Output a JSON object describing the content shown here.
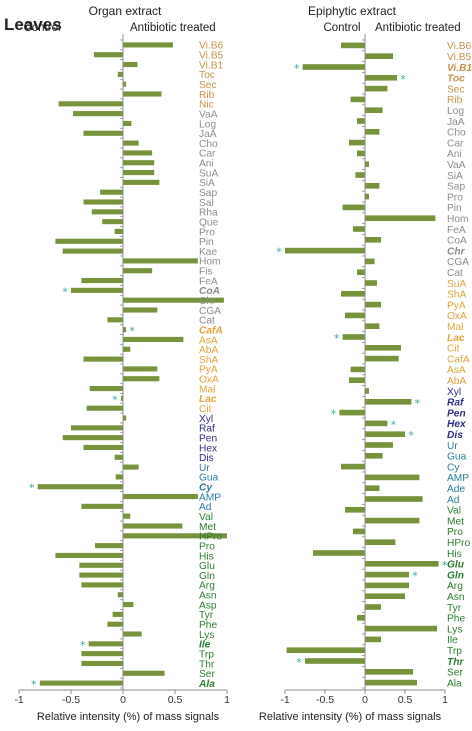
{
  "figure_label": "Leaves",
  "colors": {
    "bar": "#77933C",
    "axis": "#8c8c8c",
    "star": "#3aa89a",
    "vitamins": "#C8924A",
    "secondary": "#8C8C8C",
    "organic_acids": "#E3A23A",
    "sugars": "#2E2E8A",
    "nucleotides": "#2C7DA0",
    "amino_acids": "#2E7D32"
  },
  "chart_data": [
    {
      "type": "bar",
      "orientation": "horizontal",
      "title": "Organ extract",
      "left_label": "Control",
      "right_label": "Antibiotic treated",
      "xlabel": "Relative intensity (%) of mass signals",
      "xlim": [
        -1,
        1
      ],
      "xticks": [
        -1,
        -0.5,
        0,
        0.5,
        1
      ],
      "xtick_labels": [
        "-1",
        "-0.5",
        "0",
        "0.5",
        "1"
      ],
      "grid": false,
      "categories": [
        "Vi.B6",
        "Vi.B5",
        "Vi.B1",
        "Toc",
        "Sec",
        "Rib",
        "Nic",
        "VaA",
        "Log",
        "JaA",
        "Cho",
        "Car",
        "Ani",
        "SuA",
        "SiA",
        "Sap",
        "Sal",
        "Rha",
        "Que",
        "Pro",
        "Pin",
        "Kae",
        "Hom",
        "Fis",
        "FeA",
        "CoA",
        "Chr",
        "CGA",
        "Cat",
        "CafA",
        "AsA",
        "AbA",
        "ShA",
        "PyA",
        "OxA",
        "Mal",
        "Lac",
        "Cit",
        "Xyl",
        "Raf",
        "Pen",
        "Hex",
        "Dis",
        "Ur",
        "Gua",
        "Cy",
        "AMP",
        "Ad",
        "Val",
        "Met",
        "HPro",
        "Pro",
        "His",
        "Glu",
        "Gln",
        "Arg",
        "Asn",
        "Asp",
        "Tyr",
        "Phe",
        "Lys",
        "Ile",
        "Trp",
        "Thr",
        "Ser",
        "Ala"
      ],
      "groups": [
        "vitamins",
        "vitamins",
        "vitamins",
        "vitamins",
        "vitamins",
        "vitamins",
        "vitamins",
        "secondary",
        "secondary",
        "secondary",
        "secondary",
        "secondary",
        "secondary",
        "secondary",
        "secondary",
        "secondary",
        "secondary",
        "secondary",
        "secondary",
        "secondary",
        "secondary",
        "secondary",
        "secondary",
        "secondary",
        "secondary",
        "secondary",
        "secondary",
        "secondary",
        "secondary",
        "organic_acids",
        "organic_acids",
        "organic_acids",
        "organic_acids",
        "organic_acids",
        "organic_acids",
        "organic_acids",
        "organic_acids",
        "organic_acids",
        "sugars",
        "sugars",
        "sugars",
        "sugars",
        "sugars",
        "nucleotides",
        "nucleotides",
        "nucleotides",
        "nucleotides",
        "nucleotides",
        "amino_acids",
        "amino_acids",
        "amino_acids",
        "amino_acids",
        "amino_acids",
        "amino_acids",
        "amino_acids",
        "amino_acids",
        "amino_acids",
        "amino_acids",
        "amino_acids",
        "amino_acids",
        "amino_acids",
        "amino_acids",
        "amino_acids",
        "amino_acids",
        "amino_acids",
        "amino_acids"
      ],
      "emphasized": [
        "CoA",
        "CafA",
        "Lac",
        "Cy",
        "Ile",
        "Ala"
      ],
      "values": [
        0.48,
        -0.28,
        0.14,
        -0.05,
        0.03,
        0.37,
        -0.62,
        -0.48,
        0.08,
        -0.38,
        0.15,
        0.28,
        0.3,
        0.3,
        0.35,
        -0.22,
        -0.38,
        -0.3,
        -0.2,
        -0.08,
        -0.65,
        -0.58,
        0.72,
        0.28,
        -0.4,
        -0.5,
        0.97,
        0.33,
        -0.15,
        0.03,
        0.58,
        0.07,
        -0.38,
        0.33,
        0.35,
        -0.32,
        -0.02,
        -0.35,
        0.03,
        -0.5,
        -0.58,
        -0.38,
        -0.08,
        0.15,
        -0.07,
        -0.82,
        0.72,
        -0.4,
        0.07,
        0.57,
        1.0,
        -0.27,
        -0.65,
        -0.42,
        -0.42,
        -0.4,
        -0.05,
        0.1,
        -0.1,
        -0.15,
        0.18,
        -0.33,
        -0.4,
        -0.4,
        0.4,
        -0.8
      ],
      "significant": [
        "CoA",
        "CafA",
        "Lac",
        "Cy",
        "Ile",
        "Ala"
      ]
    },
    {
      "type": "bar",
      "orientation": "horizontal",
      "title": "Epiphytic extract",
      "left_label": "Control",
      "right_label": "Antibiotic treated",
      "xlabel": "Relative intensity (%) of mass signals",
      "xlim": [
        -1,
        1
      ],
      "xticks": [
        -1,
        -0.5,
        0,
        0.5,
        1
      ],
      "xtick_labels": [
        "-1",
        "-0.5",
        "0",
        "0.5",
        "1"
      ],
      "grid": false,
      "categories": [
        "Vi.B6",
        "Vi.B5",
        "Vi.B1",
        "Toc",
        "Sec",
        "Rib",
        "Log",
        "JaA",
        "Cho",
        "Car",
        "Ani",
        "VaA",
        "SiA",
        "Sap",
        "Pro",
        "Pin",
        "Hom",
        "FeA",
        "CoA",
        "Chr",
        "CGA",
        "Cat",
        "SuA",
        "ShA",
        "PyA",
        "OxA",
        "Mal",
        "Lac",
        "Cit",
        "CafA",
        "AsA",
        "AbA",
        "Xyl",
        "Raf",
        "Pen",
        "Hex",
        "Dis",
        "Ur",
        "Gua",
        "Cy",
        "AMP",
        "Ade",
        "Ad",
        "Val",
        "Met",
        "Pro",
        "HPro",
        "His",
        "Glu",
        "Gln",
        "Arg",
        "Asn",
        "Tyr",
        "Phe",
        "Lys",
        "Ile",
        "Trp",
        "Thr",
        "Ser",
        "Ala"
      ],
      "groups": [
        "vitamins",
        "vitamins",
        "vitamins",
        "vitamins",
        "vitamins",
        "vitamins",
        "secondary",
        "secondary",
        "secondary",
        "secondary",
        "secondary",
        "secondary",
        "secondary",
        "secondary",
        "secondary",
        "secondary",
        "secondary",
        "secondary",
        "secondary",
        "secondary",
        "secondary",
        "secondary",
        "organic_acids",
        "organic_acids",
        "organic_acids",
        "organic_acids",
        "organic_acids",
        "organic_acids",
        "organic_acids",
        "organic_acids",
        "organic_acids",
        "organic_acids",
        "sugars",
        "sugars",
        "sugars",
        "sugars",
        "sugars",
        "nucleotides",
        "nucleotides",
        "nucleotides",
        "nucleotides",
        "nucleotides",
        "nucleotides",
        "amino_acids",
        "amino_acids",
        "amino_acids",
        "amino_acids",
        "amino_acids",
        "amino_acids",
        "amino_acids",
        "amino_acids",
        "amino_acids",
        "amino_acids",
        "amino_acids",
        "amino_acids",
        "amino_acids",
        "amino_acids",
        "amino_acids",
        "amino_acids",
        "amino_acids"
      ],
      "emphasized": [
        "Vi.B1",
        "Toc",
        "Chr",
        "Lac",
        "Raf",
        "Pen",
        "Hex",
        "Dis",
        "Glu",
        "Gln",
        "Thr"
      ],
      "values": [
        -0.3,
        0.35,
        -0.78,
        0.4,
        0.28,
        -0.18,
        0.22,
        -0.1,
        0.18,
        -0.2,
        -0.1,
        0.05,
        -0.12,
        0.18,
        0.05,
        -0.28,
        0.88,
        -0.15,
        0.2,
        -1.0,
        0.12,
        -0.1,
        0.15,
        -0.3,
        0.2,
        -0.25,
        0.18,
        -0.28,
        0.45,
        0.42,
        -0.18,
        -0.2,
        0.05,
        0.58,
        -0.32,
        0.28,
        0.5,
        0.35,
        0.22,
        -0.3,
        0.68,
        0.18,
        0.72,
        -0.25,
        0.68,
        -0.15,
        0.38,
        -0.65,
        0.92,
        0.55,
        0.55,
        0.5,
        0.2,
        -0.1,
        0.9,
        0.2,
        -0.98,
        -0.75,
        0.6,
        0.65
      ],
      "significant": [
        "Vi.B1",
        "Toc",
        "Chr",
        "Lac",
        "Raf",
        "Pen",
        "Hex",
        "Dis",
        "Glu",
        "Gln",
        "Thr"
      ]
    }
  ]
}
